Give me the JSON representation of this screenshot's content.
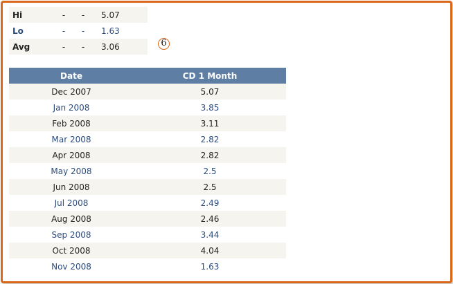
{
  "summary": {
    "rows": [
      {
        "label": "Hi",
        "dash1": "-",
        "dash2": "-",
        "value": "5.07"
      },
      {
        "label": "Lo",
        "dash1": "-",
        "dash2": "-",
        "value": "1.63"
      },
      {
        "label": "Avg",
        "dash1": "-",
        "dash2": "-",
        "value": "3.06"
      }
    ]
  },
  "badge": {
    "text": "6"
  },
  "table": {
    "headers": [
      "Date",
      "CD 1 Month"
    ],
    "rows": [
      {
        "date": "Dec 2007",
        "value": "5.07"
      },
      {
        "date": "Jan 2008",
        "value": "3.85"
      },
      {
        "date": "Feb 2008",
        "value": "3.11"
      },
      {
        "date": "Mar 2008",
        "value": "2.82"
      },
      {
        "date": "Apr 2008",
        "value": "2.82"
      },
      {
        "date": "May 2008",
        "value": "2.5"
      },
      {
        "date": "Jun 2008",
        "value": "2.5"
      },
      {
        "date": "Jul 2008",
        "value": "2.49"
      },
      {
        "date": "Aug 2008",
        "value": "2.46"
      },
      {
        "date": "Sep 2008",
        "value": "3.44"
      },
      {
        "date": "Oct 2008",
        "value": "4.04"
      },
      {
        "date": "Nov 2008",
        "value": "1.63"
      }
    ]
  },
  "colors": {
    "frame_border": "#d9681a",
    "header_bg": "#5e7ea3",
    "row_alt_bg": "#f5f4ef",
    "link_text": "#2b4b7d"
  }
}
